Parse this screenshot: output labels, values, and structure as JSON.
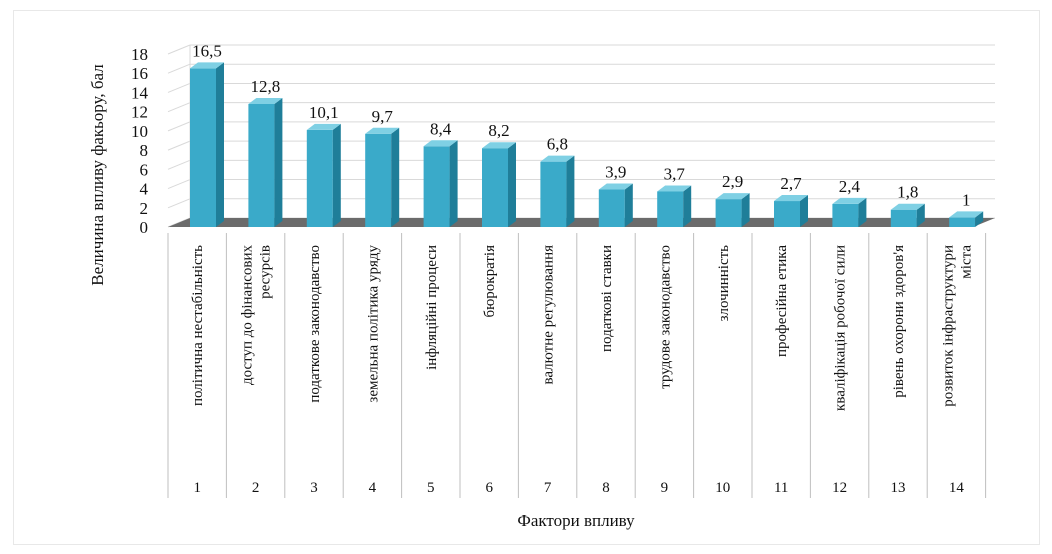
{
  "chart_data": {
    "type": "bar",
    "ylabel": "Величина впливу факьору, бал",
    "xlabel": "Фактори впливу",
    "ylim": [
      0,
      18
    ],
    "yticks": [
      0,
      2,
      4,
      6,
      8,
      10,
      12,
      14,
      16,
      18
    ],
    "grid": true,
    "numbers": [
      "1",
      "2",
      "3",
      "4",
      "5",
      "6",
      "7",
      "8",
      "9",
      "10",
      "11",
      "12",
      "13",
      "14"
    ],
    "categories": [
      [
        "політична нестабільність"
      ],
      [
        "доступ до фінансових",
        "ресурсів"
      ],
      [
        "податкове законодавство"
      ],
      [
        "земельна політика уряду"
      ],
      [
        "інфляційні процеси"
      ],
      [
        "бюрократія"
      ],
      [
        "валютне регулювання"
      ],
      [
        "податкові ставки"
      ],
      [
        "трудове законодавство"
      ],
      [
        "злочинність"
      ],
      [
        "професійна етика"
      ],
      [
        "кваліфікація робочої сили"
      ],
      [
        "рівень охорони здоров'я"
      ],
      [
        "розвиток інфраструктури",
        "міста"
      ]
    ],
    "values": [
      16.5,
      12.8,
      10.1,
      9.7,
      8.4,
      8.2,
      6.8,
      3.9,
      3.7,
      2.9,
      2.7,
      2.4,
      1.8,
      1
    ],
    "value_labels": [
      "16,5",
      "12,8",
      "10,1",
      "9,7",
      "8,4",
      "8,2",
      "6,8",
      "3,9",
      "3,7",
      "2,9",
      "2,7",
      "2,4",
      "1,8",
      "1"
    ],
    "colors": {
      "bar_front": "#3aaac9",
      "bar_side": "#1f7e99",
      "bar_top": "#7fd0e4",
      "floor": "#6b6b6b",
      "grid": "#d9d9d9"
    }
  }
}
